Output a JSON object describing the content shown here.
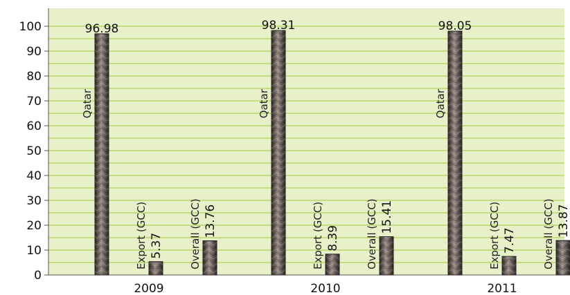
{
  "chart_data": {
    "type": "bar",
    "categories": [
      "2009",
      "2010",
      "2011"
    ],
    "series": [
      {
        "name": "Qatar",
        "values": [
          96.98,
          98.31,
          98.05
        ]
      },
      {
        "name": "Export (GCC)",
        "values": [
          5.37,
          8.39,
          7.47
        ]
      },
      {
        "name": "Overall (GCC)",
        "values": [
          13.76,
          15.41,
          13.87
        ]
      }
    ],
    "title": "",
    "xlabel": "",
    "ylabel": "",
    "ylim": [
      0,
      100
    ],
    "yticks": [
      0,
      10,
      20,
      30,
      40,
      50,
      60,
      70,
      80,
      90,
      100
    ],
    "grid": true,
    "legend": "none",
    "colors": {
      "plot_background": "#e7f0c8",
      "gridline": "#a6c83c",
      "axis": "#555555",
      "bar_fill": "#5a4f4a",
      "bar_highlight": "#9a8f88",
      "bar_shadow": "#2b2624"
    }
  }
}
